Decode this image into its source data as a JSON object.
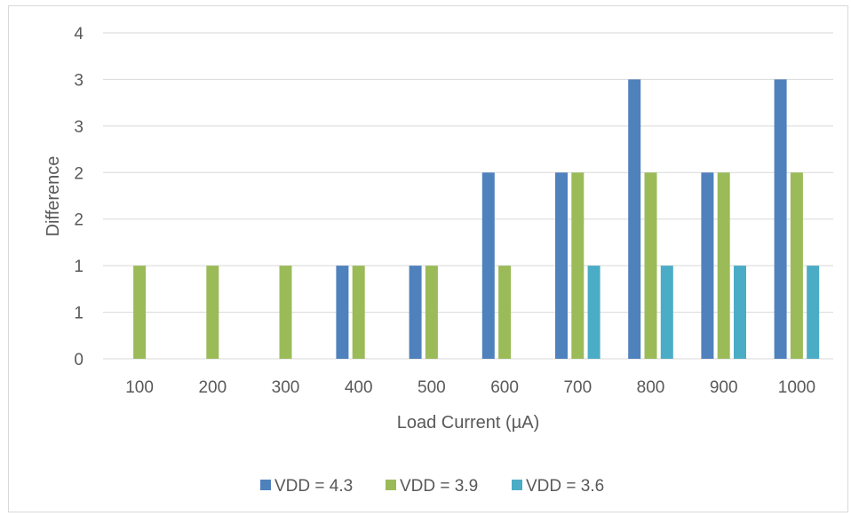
{
  "chart_data": {
    "type": "bar",
    "title": "",
    "xlabel": "Load Current (µA)",
    "ylabel": "Difference",
    "categories": [
      "100",
      "200",
      "300",
      "400",
      "500",
      "600",
      "700",
      "800",
      "900",
      "1000"
    ],
    "series": [
      {
        "name": "VDD = 4.3",
        "color": "#4f81bd",
        "values": [
          0,
          0,
          0,
          1,
          1,
          2,
          2,
          3,
          2,
          3
        ]
      },
      {
        "name": "VDD = 3.9",
        "color": "#9bbb59",
        "values": [
          1,
          1,
          1,
          1,
          1,
          1,
          2,
          2,
          2,
          2
        ]
      },
      {
        "name": "VDD = 3.6",
        "color": "#4bacc6",
        "values": [
          0,
          0,
          0,
          0,
          0,
          0,
          1,
          1,
          1,
          1
        ]
      }
    ],
    "yticks": [
      "0",
      "1",
      "1",
      "2",
      "2",
      "3",
      "3",
      "4"
    ],
    "ylim": [
      0,
      3.5
    ],
    "grid": true,
    "legend": "bottom"
  }
}
